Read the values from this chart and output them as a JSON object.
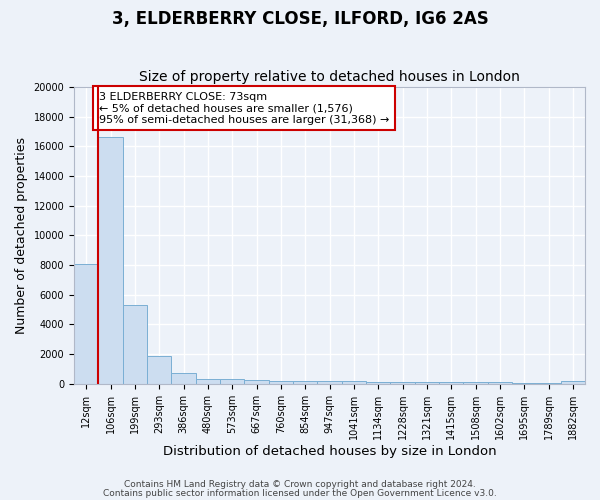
{
  "title": "3, ELDERBERRY CLOSE, ILFORD, IG6 2AS",
  "subtitle": "Size of property relative to detached houses in London",
  "xlabel": "Distribution of detached houses by size in London",
  "ylabel": "Number of detached properties",
  "categories": [
    "12sqm",
    "106sqm",
    "199sqm",
    "293sqm",
    "386sqm",
    "480sqm",
    "573sqm",
    "667sqm",
    "760sqm",
    "854sqm",
    "947sqm",
    "1041sqm",
    "1134sqm",
    "1228sqm",
    "1321sqm",
    "1415sqm",
    "1508sqm",
    "1602sqm",
    "1695sqm",
    "1789sqm",
    "1882sqm"
  ],
  "values": [
    8100,
    16600,
    5300,
    1850,
    750,
    310,
    330,
    230,
    200,
    185,
    160,
    150,
    130,
    120,
    110,
    100,
    90,
    85,
    80,
    75,
    170
  ],
  "bar_color": "#ccddf0",
  "bar_edge_color": "#7aafd4",
  "vline_x": 0.5,
  "vline_color": "#cc0000",
  "annotation_text": "3 ELDERBERRY CLOSE: 73sqm\n← 5% of detached houses are smaller (1,576)\n95% of semi-detached houses are larger (31,368) →",
  "annotation_box_color": "#ffffff",
  "annotation_box_edge": "#cc0000",
  "ylim": [
    0,
    20000
  ],
  "yticks": [
    0,
    2000,
    4000,
    6000,
    8000,
    10000,
    12000,
    14000,
    16000,
    18000,
    20000
  ],
  "footer1": "Contains HM Land Registry data © Crown copyright and database right 2024.",
  "footer2": "Contains public sector information licensed under the Open Government Licence v3.0.",
  "bg_color": "#edf2f9",
  "grid_color": "#ffffff",
  "title_fontsize": 12,
  "subtitle_fontsize": 10,
  "axis_label_fontsize": 9,
  "tick_fontsize": 7,
  "footer_fontsize": 6.5
}
